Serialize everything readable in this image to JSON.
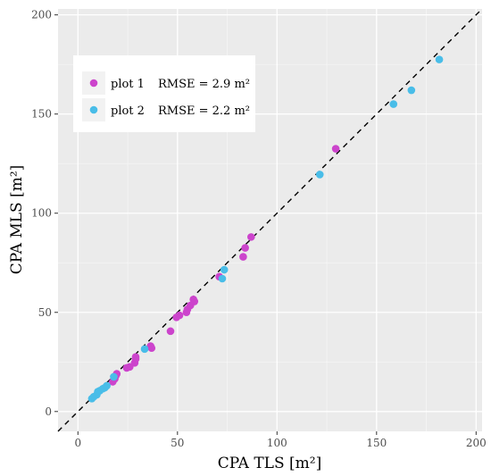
{
  "chart_data": {
    "type": "scatter",
    "title": "",
    "xlabel": "CPA TLS [m²]",
    "ylabel": "CPA MLS [m²]",
    "xlim": [
      -10,
      203
    ],
    "ylim": [
      -10,
      203
    ],
    "x_ticks": [
      0,
      50,
      100,
      150,
      200
    ],
    "y_ticks": [
      0,
      50,
      100,
      150,
      200
    ],
    "grid": true,
    "reference_line": "1:1 dashed",
    "legend_position": "top-left",
    "series": [
      {
        "name": "plot 1",
        "rmse_label": "RMSE = 2.9 m²",
        "color": "#cc44cc",
        "points": [
          [
            17.5,
            15.0
          ],
          [
            18.5,
            16.5
          ],
          [
            19.0,
            18.0
          ],
          [
            19.5,
            19.0
          ],
          [
            24.5,
            22.0
          ],
          [
            26.0,
            22.5
          ],
          [
            28.5,
            24.5
          ],
          [
            29.0,
            26.5
          ],
          [
            29.0,
            27.5
          ],
          [
            36.5,
            33.0
          ],
          [
            37.0,
            32.0
          ],
          [
            46.5,
            40.5
          ],
          [
            49.5,
            47.5
          ],
          [
            51.0,
            48.5
          ],
          [
            54.5,
            50.0
          ],
          [
            55.0,
            51.5
          ],
          [
            56.5,
            53.5
          ],
          [
            58.0,
            56.5
          ],
          [
            58.5,
            55.5
          ],
          [
            71.0,
            68.0
          ],
          [
            83.0,
            78.0
          ],
          [
            84.0,
            82.5
          ],
          [
            87.0,
            88.0
          ],
          [
            129.5,
            132.5
          ]
        ]
      },
      {
        "name": "plot 2",
        "rmse_label": "RMSE = 2.2 m²",
        "color": "#49bde8",
        "points": [
          [
            7.0,
            6.5
          ],
          [
            8.0,
            7.5
          ],
          [
            9.5,
            8.5
          ],
          [
            10.0,
            10.0
          ],
          [
            11.0,
            10.5
          ],
          [
            12.5,
            11.5
          ],
          [
            13.5,
            12.0
          ],
          [
            14.5,
            13.0
          ],
          [
            18.0,
            17.5
          ],
          [
            33.5,
            31.5
          ],
          [
            72.5,
            67.0
          ],
          [
            73.5,
            71.5
          ],
          [
            121.5,
            119.5
          ],
          [
            158.5,
            155.0
          ],
          [
            167.5,
            162.0
          ],
          [
            181.5,
            177.5
          ]
        ]
      }
    ]
  }
}
